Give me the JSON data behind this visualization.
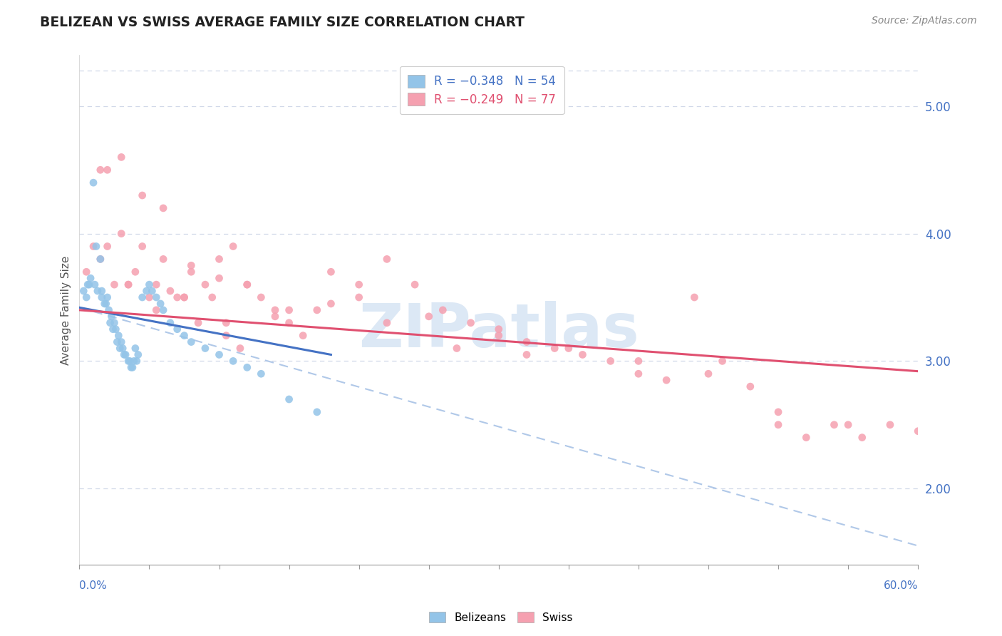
{
  "title": "BELIZEAN VS SWISS AVERAGE FAMILY SIZE CORRELATION CHART",
  "source_text": "Source: ZipAtlas.com",
  "ylabel": "Average Family Size",
  "y_ticks_right": [
    2.0,
    3.0,
    4.0,
    5.0
  ],
  "x_range": [
    0.0,
    60.0
  ],
  "y_range": [
    1.4,
    5.4
  ],
  "belize_color": "#93c4e8",
  "swiss_color": "#f5a0b0",
  "belize_trend_color": "#4472c4",
  "swiss_trend_color": "#e05070",
  "dashed_trend_color": "#b0c8e8",
  "watermark_color": "#dce8f5",
  "axis_label_color": "#4472c4",
  "grid_color": "#d0d8e8",
  "background_color": "#ffffff",
  "title_color": "#222222",
  "source_color": "#888888",
  "ylabel_color": "#555555",
  "belize_x": [
    0.5,
    0.7,
    1.0,
    1.2,
    1.5,
    1.6,
    1.8,
    2.0,
    2.1,
    2.3,
    2.5,
    2.6,
    2.8,
    3.0,
    3.1,
    3.3,
    3.5,
    3.7,
    3.9,
    4.0,
    4.2,
    4.5,
    4.8,
    5.0,
    5.2,
    5.5,
    5.8,
    6.0,
    6.5,
    7.0,
    7.5,
    8.0,
    9.0,
    10.0,
    11.0,
    12.0,
    13.0,
    15.0,
    17.0,
    0.3,
    0.6,
    0.8,
    1.1,
    1.3,
    1.6,
    1.9,
    2.2,
    2.4,
    2.7,
    2.9,
    3.2,
    3.6,
    3.8,
    4.1
  ],
  "belize_y": [
    3.5,
    3.6,
    4.4,
    3.9,
    3.8,
    3.55,
    3.45,
    3.5,
    3.4,
    3.35,
    3.3,
    3.25,
    3.2,
    3.15,
    3.1,
    3.05,
    3.0,
    2.95,
    3.0,
    3.1,
    3.05,
    3.5,
    3.55,
    3.6,
    3.55,
    3.5,
    3.45,
    3.4,
    3.3,
    3.25,
    3.2,
    3.15,
    3.1,
    3.05,
    3.0,
    2.95,
    2.9,
    2.7,
    2.6,
    3.55,
    3.6,
    3.65,
    3.6,
    3.55,
    3.5,
    3.45,
    3.3,
    3.25,
    3.15,
    3.1,
    3.05,
    3.0,
    2.95,
    3.0
  ],
  "swiss_x": [
    2.0,
    3.0,
    4.5,
    6.0,
    7.5,
    8.0,
    9.0,
    10.0,
    11.0,
    12.0,
    13.0,
    14.0,
    15.0,
    16.0,
    17.0,
    18.0,
    20.0,
    22.0,
    24.0,
    26.0,
    28.0,
    30.0,
    32.0,
    34.0,
    36.0,
    38.0,
    40.0,
    42.0,
    44.0,
    46.0,
    48.0,
    50.0,
    52.0,
    54.0,
    56.0,
    58.0,
    0.5,
    1.0,
    1.5,
    2.5,
    3.5,
    4.0,
    5.0,
    5.5,
    6.5,
    7.0,
    8.5,
    9.5,
    10.5,
    11.5,
    2.0,
    3.0,
    4.5,
    6.0,
    8.0,
    10.0,
    12.0,
    15.0,
    20.0,
    25.0,
    30.0,
    35.0,
    40.0,
    45.0,
    50.0,
    55.0,
    60.0,
    1.5,
    3.5,
    5.5,
    7.5,
    10.5,
    14.0,
    18.0,
    22.0,
    27.0,
    32.0
  ],
  "swiss_y": [
    4.5,
    4.6,
    4.3,
    4.2,
    3.5,
    3.7,
    3.6,
    3.8,
    3.9,
    3.6,
    3.5,
    3.4,
    3.3,
    3.2,
    3.4,
    3.7,
    3.6,
    3.8,
    3.6,
    3.4,
    3.3,
    3.2,
    3.15,
    3.1,
    3.05,
    3.0,
    2.9,
    2.85,
    3.5,
    3.0,
    2.8,
    2.5,
    2.4,
    2.5,
    2.4,
    2.5,
    3.7,
    3.9,
    3.8,
    3.6,
    3.6,
    3.7,
    3.5,
    3.6,
    3.55,
    3.5,
    3.3,
    3.5,
    3.2,
    3.1,
    3.9,
    4.0,
    3.9,
    3.8,
    3.75,
    3.65,
    3.6,
    3.4,
    3.5,
    3.35,
    3.25,
    3.1,
    3.0,
    2.9,
    2.6,
    2.5,
    2.45,
    4.5,
    3.6,
    3.4,
    3.5,
    3.3,
    3.35,
    3.45,
    3.3,
    3.1,
    3.05
  ],
  "belize_trend": [
    0.0,
    18.0,
    3.42,
    3.05
  ],
  "swiss_trend": [
    0.0,
    60.0,
    3.4,
    2.92
  ],
  "dashed_line": [
    0.0,
    60.0,
    3.42,
    1.55
  ],
  "n_xticks": 12
}
